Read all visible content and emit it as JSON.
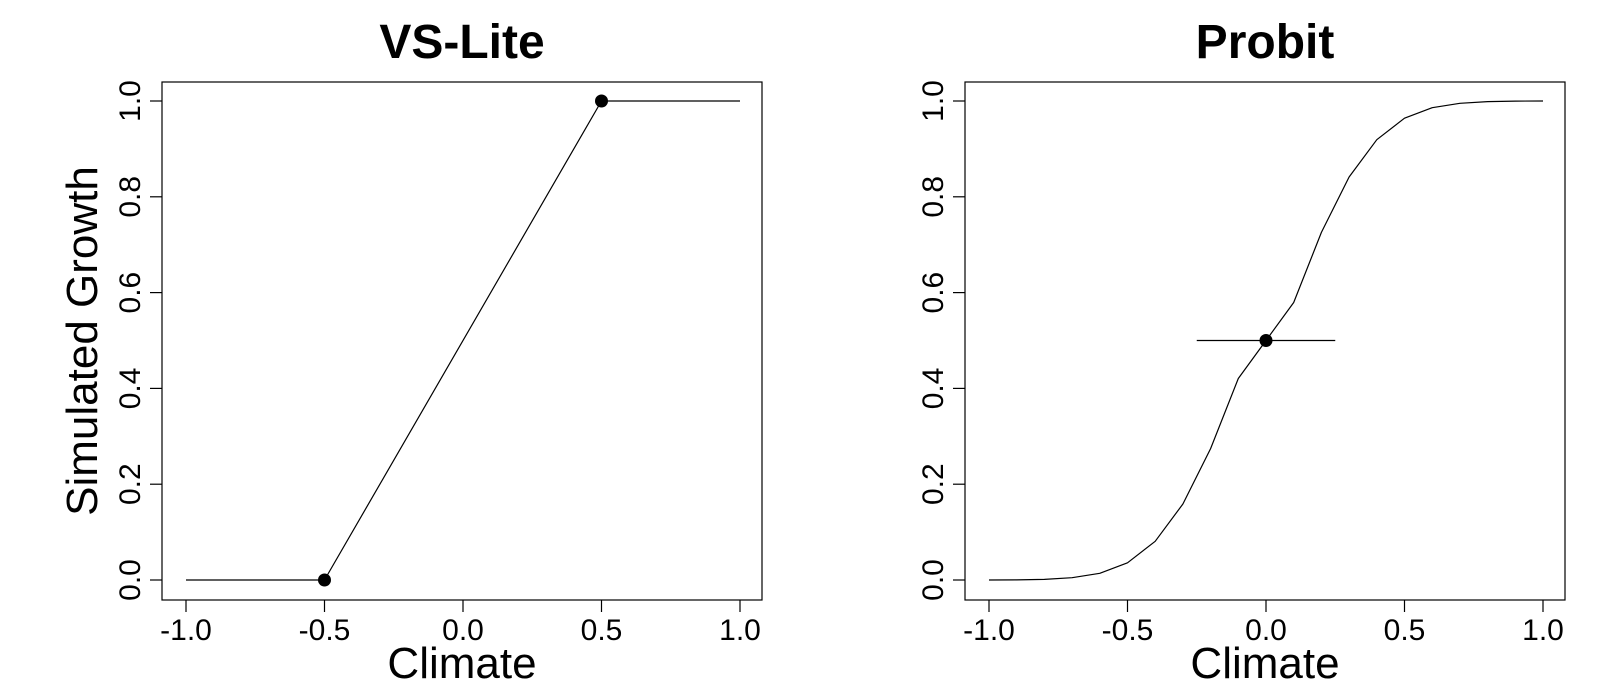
{
  "chart_data": [
    {
      "type": "line",
      "title": "VS-Lite",
      "xlabel": "Climate",
      "ylabel": "Simulated Growth",
      "xlim": [
        -1.0,
        1.0
      ],
      "ylim": [
        0.0,
        1.0
      ],
      "x_ticks": [
        "-1.0",
        "-0.5",
        "0.0",
        "0.5",
        "1.0"
      ],
      "y_ticks": [
        "0.0",
        "0.2",
        "0.4",
        "0.6",
        "0.8",
        "1.0"
      ],
      "grid": false,
      "series": [
        {
          "x": [
            -1.0,
            -0.5,
            0.5,
            1.0
          ],
          "y": [
            0.0,
            0.0,
            1.0,
            1.0
          ]
        }
      ],
      "points": [
        {
          "x": -0.5,
          "y": 0.0
        },
        {
          "x": 0.5,
          "y": 1.0
        }
      ]
    },
    {
      "type": "line",
      "title": "Probit",
      "xlabel": "Climate",
      "ylabel": "",
      "xlim": [
        -1.0,
        1.0
      ],
      "ylim": [
        0.0,
        1.0
      ],
      "x_ticks": [
        "-1.0",
        "-0.5",
        "0.0",
        "0.5",
        "1.0"
      ],
      "y_ticks": [
        "0.0",
        "0.2",
        "0.4",
        "0.6",
        "0.8",
        "1.0"
      ],
      "grid": false,
      "series": [
        {
          "x": [
            -1.0,
            -0.9,
            -0.8,
            -0.7,
            -0.6,
            -0.5,
            -0.4,
            -0.3,
            -0.2,
            -0.1,
            0.0,
            0.1,
            0.2,
            0.3,
            0.4,
            0.5,
            0.6,
            0.7,
            0.8,
            0.9,
            1.0
          ],
          "y": [
            0.0,
            0.0003,
            0.0013,
            0.0047,
            0.0139,
            0.0359,
            0.0808,
            0.1587,
            0.2743,
            0.4207,
            0.5,
            0.5793,
            0.7257,
            0.8413,
            0.9192,
            0.9641,
            0.9861,
            0.9953,
            0.9987,
            0.9997,
            1.0
          ]
        }
      ],
      "points": [
        {
          "x": 0.0,
          "y": 0.5
        }
      ],
      "error_bars": [
        {
          "x_low": -0.25,
          "x_high": 0.25,
          "y": 0.5
        }
      ]
    }
  ]
}
